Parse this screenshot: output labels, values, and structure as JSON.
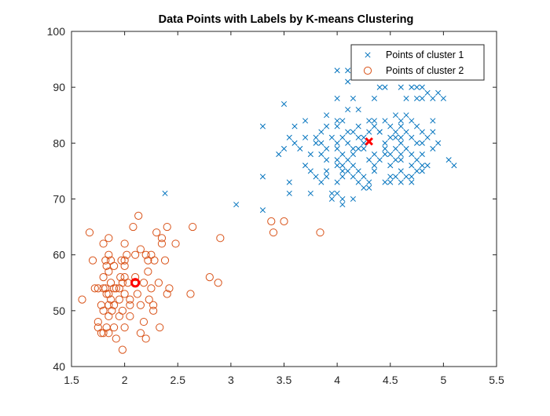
{
  "chart_data": {
    "type": "scatter",
    "title": "Data Points with Labels by K-means Clustering",
    "xlabel": "",
    "ylabel": "",
    "xlim": [
      1.5,
      5.5
    ],
    "ylim": [
      40,
      100
    ],
    "xticks": [
      1.5,
      2,
      2.5,
      3,
      3.5,
      4,
      4.5,
      5,
      5.5
    ],
    "xtick_labels": [
      "1.5",
      "2",
      "2.5",
      "3",
      "3.5",
      "4",
      "4.5",
      "5",
      "5.5"
    ],
    "yticks": [
      40,
      50,
      60,
      70,
      80,
      90,
      100
    ],
    "ytick_labels": [
      "40",
      "50",
      "60",
      "70",
      "80",
      "90",
      "100"
    ],
    "grid": false,
    "legend_position": "top-right",
    "series": [
      {
        "name": "Points of cluster 1",
        "marker": "x",
        "color": "#0072BD",
        "points": [
          [
            4.0,
            93
          ],
          [
            4.1,
            93
          ],
          [
            4.2,
            92
          ],
          [
            4.1,
            91
          ],
          [
            4.3,
            92
          ],
          [
            4.4,
            90
          ],
          [
            4.45,
            90
          ],
          [
            4.6,
            90
          ],
          [
            4.7,
            90
          ],
          [
            4.75,
            90
          ],
          [
            4.8,
            90
          ],
          [
            4.85,
            89
          ],
          [
            4.95,
            89
          ],
          [
            4.0,
            88
          ],
          [
            4.15,
            88
          ],
          [
            4.35,
            88
          ],
          [
            4.65,
            88
          ],
          [
            4.75,
            88
          ],
          [
            4.8,
            88
          ],
          [
            4.9,
            88
          ],
          [
            5.0,
            88
          ],
          [
            3.5,
            87
          ],
          [
            4.1,
            86
          ],
          [
            4.2,
            86
          ],
          [
            3.9,
            85
          ],
          [
            4.55,
            85
          ],
          [
            4.6,
            84
          ],
          [
            3.7,
            84
          ],
          [
            4.0,
            84
          ],
          [
            4.05,
            84
          ],
          [
            4.3,
            84
          ],
          [
            4.45,
            84
          ],
          [
            4.65,
            85
          ],
          [
            4.7,
            84
          ],
          [
            4.9,
            84
          ],
          [
            3.3,
            83
          ],
          [
            3.6,
            83
          ],
          [
            3.9,
            83
          ],
          [
            4.0,
            83
          ],
          [
            4.2,
            83
          ],
          [
            4.35,
            83
          ],
          [
            4.5,
            83
          ],
          [
            4.6,
            83
          ],
          [
            4.75,
            83
          ],
          [
            4.8,
            82
          ],
          [
            3.85,
            82
          ],
          [
            4.1,
            82
          ],
          [
            4.15,
            82
          ],
          [
            4.3,
            82
          ],
          [
            4.4,
            82
          ],
          [
            4.55,
            82
          ],
          [
            4.65,
            82
          ],
          [
            4.9,
            82
          ],
          [
            3.55,
            81
          ],
          [
            3.7,
            81
          ],
          [
            3.8,
            81
          ],
          [
            3.95,
            81
          ],
          [
            4.05,
            81
          ],
          [
            4.2,
            81
          ],
          [
            4.25,
            81
          ],
          [
            4.5,
            81
          ],
          [
            4.55,
            81
          ],
          [
            4.7,
            81
          ],
          [
            4.85,
            81
          ],
          [
            3.6,
            80
          ],
          [
            3.8,
            80
          ],
          [
            3.85,
            80
          ],
          [
            4.0,
            80
          ],
          [
            4.1,
            80
          ],
          [
            4.45,
            80
          ],
          [
            4.6,
            80
          ],
          [
            4.75,
            80
          ],
          [
            4.8,
            80
          ],
          [
            3.5,
            79
          ],
          [
            3.65,
            79
          ],
          [
            3.9,
            79
          ],
          [
            4.0,
            79
          ],
          [
            4.2,
            79
          ],
          [
            4.25,
            79
          ],
          [
            4.45,
            79
          ],
          [
            4.55,
            79
          ],
          [
            4.65,
            79
          ],
          [
            4.9,
            79
          ],
          [
            3.45,
            78
          ],
          [
            3.75,
            78
          ],
          [
            3.85,
            78
          ],
          [
            4.05,
            78
          ],
          [
            4.15,
            78
          ],
          [
            4.35,
            78
          ],
          [
            4.45,
            78
          ],
          [
            4.6,
            78
          ],
          [
            4.7,
            78
          ],
          [
            4.8,
            78
          ],
          [
            3.9,
            77
          ],
          [
            4.0,
            77
          ],
          [
            4.1,
            77
          ],
          [
            4.3,
            77
          ],
          [
            4.55,
            77
          ],
          [
            4.6,
            77
          ],
          [
            4.75,
            77
          ],
          [
            5.05,
            77
          ],
          [
            3.7,
            76
          ],
          [
            4.0,
            76
          ],
          [
            4.05,
            76
          ],
          [
            4.15,
            76
          ],
          [
            4.35,
            76
          ],
          [
            4.5,
            76
          ],
          [
            4.7,
            76
          ],
          [
            4.85,
            76
          ],
          [
            5.1,
            76
          ],
          [
            3.75,
            75
          ],
          [
            3.9,
            75
          ],
          [
            4.05,
            75
          ],
          [
            4.1,
            75
          ],
          [
            4.2,
            75
          ],
          [
            4.35,
            75
          ],
          [
            4.6,
            75
          ],
          [
            4.75,
            75
          ],
          [
            4.8,
            75
          ],
          [
            3.3,
            74
          ],
          [
            3.8,
            74
          ],
          [
            3.9,
            74
          ],
          [
            4.05,
            74
          ],
          [
            4.15,
            74
          ],
          [
            4.25,
            74
          ],
          [
            4.5,
            74
          ],
          [
            4.55,
            74
          ],
          [
            4.65,
            74
          ],
          [
            4.7,
            74
          ],
          [
            3.55,
            73
          ],
          [
            3.85,
            73
          ],
          [
            4.0,
            73
          ],
          [
            4.2,
            73
          ],
          [
            4.3,
            73
          ],
          [
            4.45,
            73
          ],
          [
            4.5,
            73
          ],
          [
            4.6,
            73
          ],
          [
            4.7,
            73
          ],
          [
            4.25,
            72
          ],
          [
            4.3,
            72
          ],
          [
            3.55,
            71
          ],
          [
            3.75,
            71
          ],
          [
            3.95,
            71
          ],
          [
            4.0,
            71
          ],
          [
            4.05,
            70
          ],
          [
            4.15,
            70
          ],
          [
            3.95,
            70
          ],
          [
            4.05,
            69
          ],
          [
            3.05,
            69
          ],
          [
            2.38,
            71
          ],
          [
            3.3,
            68
          ],
          [
            4.35,
            84
          ],
          [
            4.4,
            82
          ],
          [
            4.6,
            81
          ],
          [
            4.25,
            80
          ],
          [
            4.15,
            79
          ],
          [
            4.4,
            77
          ],
          [
            4.8,
            76
          ],
          [
            4.95,
            80
          ],
          [
            4.5,
            78
          ]
        ]
      },
      {
        "name": "Points of cluster 2",
        "marker": "o",
        "color": "#D95319",
        "points": [
          [
            1.6,
            52
          ],
          [
            1.67,
            64
          ],
          [
            1.7,
            59
          ],
          [
            1.72,
            54
          ],
          [
            1.75,
            54
          ],
          [
            1.75,
            48
          ],
          [
            1.75,
            47
          ],
          [
            1.78,
            51
          ],
          [
            1.78,
            46
          ],
          [
            1.8,
            62
          ],
          [
            1.8,
            54
          ],
          [
            1.8,
            50
          ],
          [
            1.8,
            46
          ],
          [
            1.82,
            59
          ],
          [
            1.82,
            54
          ],
          [
            1.83,
            58
          ],
          [
            1.83,
            53
          ],
          [
            1.83,
            47
          ],
          [
            1.85,
            63
          ],
          [
            1.85,
            60
          ],
          [
            1.85,
            57
          ],
          [
            1.85,
            53
          ],
          [
            1.85,
            51
          ],
          [
            1.85,
            49
          ],
          [
            1.85,
            46
          ],
          [
            1.87,
            59
          ],
          [
            1.87,
            55
          ],
          [
            1.87,
            52
          ],
          [
            1.88,
            50
          ],
          [
            1.9,
            58
          ],
          [
            1.9,
            54
          ],
          [
            1.9,
            51
          ],
          [
            1.9,
            47
          ],
          [
            1.92,
            45
          ],
          [
            1.95,
            52
          ],
          [
            1.95,
            49
          ],
          [
            1.96,
            56
          ],
          [
            1.97,
            59
          ],
          [
            1.98,
            55
          ],
          [
            1.98,
            50
          ],
          [
            1.98,
            43
          ],
          [
            2.0,
            62
          ],
          [
            2.0,
            59
          ],
          [
            2.0,
            58
          ],
          [
            2.0,
            56
          ],
          [
            2.0,
            53
          ],
          [
            2.02,
            60
          ],
          [
            2.03,
            55
          ],
          [
            2.05,
            52
          ],
          [
            2.05,
            49
          ],
          [
            2.08,
            65
          ],
          [
            2.1,
            60
          ],
          [
            2.12,
            53
          ],
          [
            2.13,
            67
          ],
          [
            2.15,
            51
          ],
          [
            2.15,
            46
          ],
          [
            2.18,
            55
          ],
          [
            2.18,
            48
          ],
          [
            2.2,
            60
          ],
          [
            2.2,
            45
          ],
          [
            2.22,
            59
          ],
          [
            2.22,
            57
          ],
          [
            2.23,
            52
          ],
          [
            2.25,
            60
          ],
          [
            2.27,
            50
          ],
          [
            2.28,
            59
          ],
          [
            2.3,
            64
          ],
          [
            2.32,
            55
          ],
          [
            2.33,
            47
          ],
          [
            2.35,
            63
          ],
          [
            2.38,
            59
          ],
          [
            2.4,
            65
          ],
          [
            2.4,
            53
          ],
          [
            2.42,
            54
          ],
          [
            2.48,
            62
          ],
          [
            2.62,
            53
          ],
          [
            2.64,
            65
          ],
          [
            2.8,
            56
          ],
          [
            2.88,
            55
          ],
          [
            2.9,
            63
          ],
          [
            3.38,
            66
          ],
          [
            3.4,
            64
          ],
          [
            3.5,
            66
          ],
          [
            3.84,
            64
          ],
          [
            1.95,
            54
          ],
          [
            2.1,
            56
          ],
          [
            2.27,
            51
          ],
          [
            2.05,
            51
          ],
          [
            1.8,
            56
          ],
          [
            2.15,
            61
          ],
          [
            2.35,
            62
          ],
          [
            1.92,
            54
          ],
          [
            2.0,
            47
          ],
          [
            2.25,
            54
          ]
        ]
      }
    ],
    "centroids": [
      {
        "cluster": 1,
        "x": 4.3,
        "y": 80.3,
        "marker": "x",
        "color": "#FF0000"
      },
      {
        "cluster": 2,
        "x": 2.1,
        "y": 55,
        "marker": "o",
        "color": "#FF0000"
      }
    ]
  }
}
